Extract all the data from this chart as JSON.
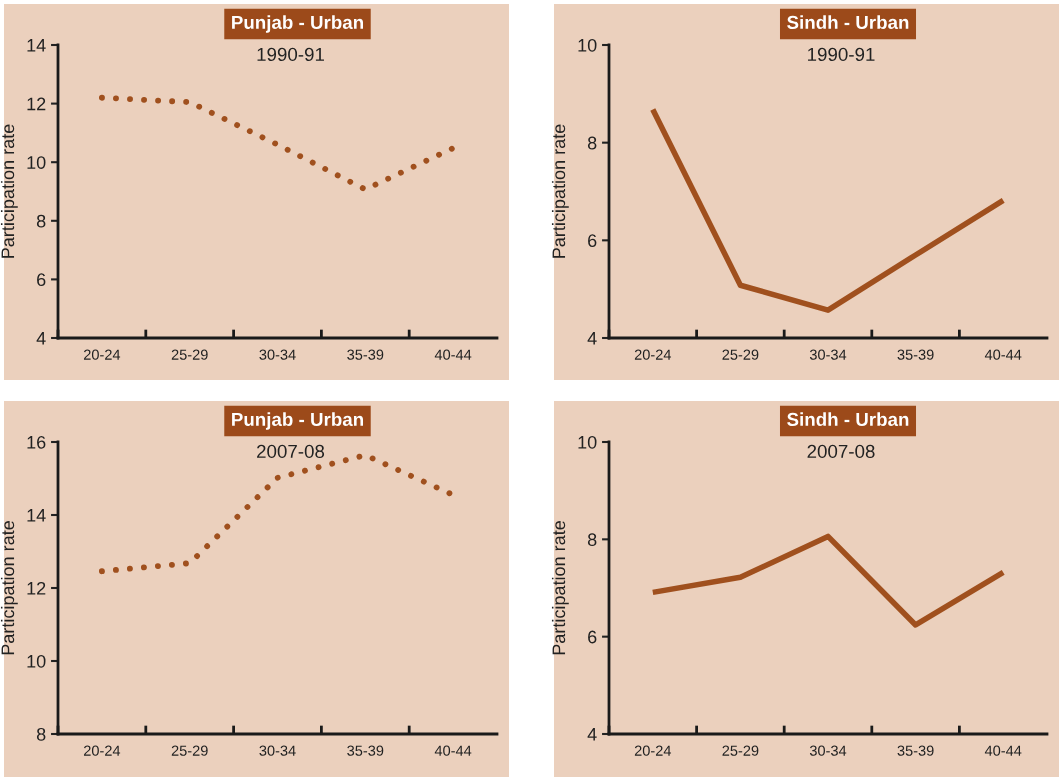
{
  "chart_data": [
    {
      "type": "line",
      "title": "Punjab - Urban",
      "subtitle": "1990-91",
      "ylabel": "Participation rate",
      "categories": [
        "20-24",
        "25-29",
        "30-34",
        "35-39",
        "40-44"
      ],
      "line_style": "dotted",
      "ylim": [
        4,
        14
      ],
      "yticks": [
        4,
        6,
        8,
        10,
        12,
        14
      ],
      "series": [
        {
          "color": "#a0501e",
          "values": [
            12.2,
            12.05,
            10.6,
            9.07,
            10.48
          ]
        }
      ]
    },
    {
      "type": "line",
      "title": "Sindh - Urban",
      "subtitle": "1990-91",
      "ylabel": "Participation rate",
      "categories": [
        "20-24",
        "25-29",
        "30-34",
        "35-39",
        "40-44"
      ],
      "line_style": "solid",
      "ylim": [
        4,
        10
      ],
      "yticks": [
        4,
        6,
        8,
        10
      ],
      "series": [
        {
          "color": "#a0501e",
          "values": [
            8.68,
            5.08,
            4.57,
            5.7,
            6.82
          ]
        }
      ]
    },
    {
      "type": "line",
      "title": "Punjab - Urban",
      "subtitle": "2007-08",
      "ylabel": "Participation rate",
      "categories": [
        "20-24",
        "25-29",
        "30-34",
        "35-39",
        "40-44"
      ],
      "line_style": "dotted",
      "ylim": [
        8,
        16
      ],
      "yticks": [
        8,
        10,
        12,
        14,
        16
      ],
      "series": [
        {
          "color": "#a0501e",
          "values": [
            12.46,
            12.68,
            15.02,
            15.64,
            14.55
          ]
        }
      ]
    },
    {
      "type": "line",
      "title": "Sindh - Urban",
      "subtitle": "2007-08",
      "ylabel": "Participation rate",
      "categories": [
        "20-24",
        "25-29",
        "30-34",
        "35-39",
        "40-44"
      ],
      "line_style": "solid",
      "ylim": [
        4,
        10
      ],
      "yticks": [
        4,
        6,
        8,
        10
      ],
      "series": [
        {
          "color": "#a0501e",
          "values": [
            6.91,
            7.22,
            8.06,
            6.24,
            7.32
          ]
        }
      ]
    }
  ]
}
